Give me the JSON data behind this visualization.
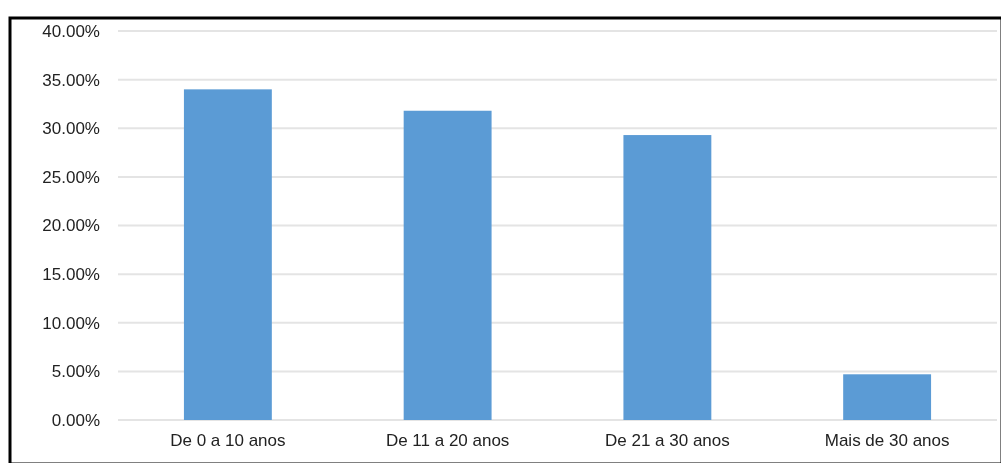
{
  "chart_data": {
    "type": "bar",
    "categories": [
      "De 0 a 10 anos",
      "De 11 a 20 anos",
      "De 21 a 30 anos",
      "Mais de 30 anos"
    ],
    "values": [
      34.0,
      31.8,
      29.3,
      4.7
    ],
    "color": "#5b9bd5",
    "ylim": [
      0,
      40
    ],
    "yticks": [
      {
        "value": 0,
        "label": "0.00%"
      },
      {
        "value": 5,
        "label": "5.00%"
      },
      {
        "value": 10,
        "label": "10.00%"
      },
      {
        "value": 15,
        "label": "15.00%"
      },
      {
        "value": 20,
        "label": "20.00%"
      },
      {
        "value": 25,
        "label": "25.00%"
      },
      {
        "value": 30,
        "label": "30.00%"
      },
      {
        "value": 35,
        "label": "35.00%"
      },
      {
        "value": 40,
        "label": "40.00%"
      }
    ],
    "grid": "y"
  }
}
